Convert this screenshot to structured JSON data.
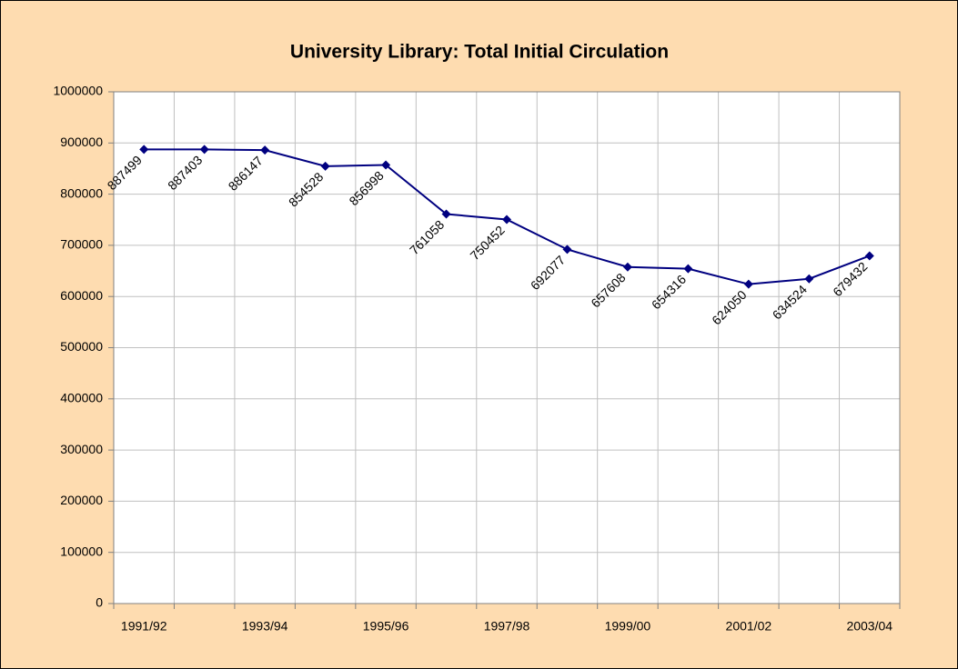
{
  "chart_data": {
    "type": "line",
    "title": "University Library:  Total Initial Circulation",
    "categories": [
      "1991/92",
      null,
      "1993/94",
      null,
      "1995/96",
      null,
      "1997/98",
      null,
      "1999/00",
      null,
      "2001/02",
      null,
      "2003/04"
    ],
    "values": [
      887499,
      887403,
      886147,
      854528,
      856998,
      761058,
      750452,
      692077,
      657608,
      654316,
      624050,
      634524,
      679432
    ],
    "color": "#000080",
    "ylim": [
      0,
      1000000
    ],
    "yticks": [
      0,
      100000,
      200000,
      300000,
      400000,
      500000,
      600000,
      700000,
      800000,
      900000,
      1000000
    ],
    "grid": true
  }
}
